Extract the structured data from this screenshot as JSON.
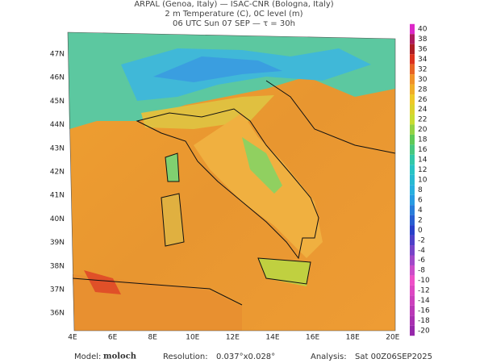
{
  "header": {
    "lines": [
      "ARPAL (Genoa, Italy)  —  ISAC-CNR (Bologna, Italy)",
      "2 m Temperature (C), 0C level (m)",
      "06 UTC Sun 07 SEP  —  τ = 30h"
    ]
  },
  "map": {
    "lat_labels": [
      "47N",
      "46N",
      "45N",
      "44N",
      "43N",
      "42N",
      "41N",
      "40N",
      "39N",
      "38N",
      "37N",
      "36N"
    ],
    "lon_labels": [
      "4E",
      "6E",
      "8E",
      "10E",
      "12E",
      "14E",
      "16E",
      "18E",
      "20E"
    ]
  },
  "colorbar": {
    "ticks": [
      40,
      38,
      36,
      34,
      32,
      30,
      28,
      26,
      24,
      22,
      20,
      18,
      16,
      14,
      12,
      10,
      8,
      6,
      4,
      2,
      0,
      -2,
      -4,
      -6,
      -8,
      -10,
      -12,
      -14,
      -16,
      -18,
      -20
    ]
  },
  "footer": {
    "model_label": "Model:",
    "model": "moloch",
    "resolution_label": "Resolution:",
    "resolution": "0.037°x0.028°",
    "analysis_label": "Analysis:",
    "analysis": "Sat 00Z06SEP2025"
  }
}
